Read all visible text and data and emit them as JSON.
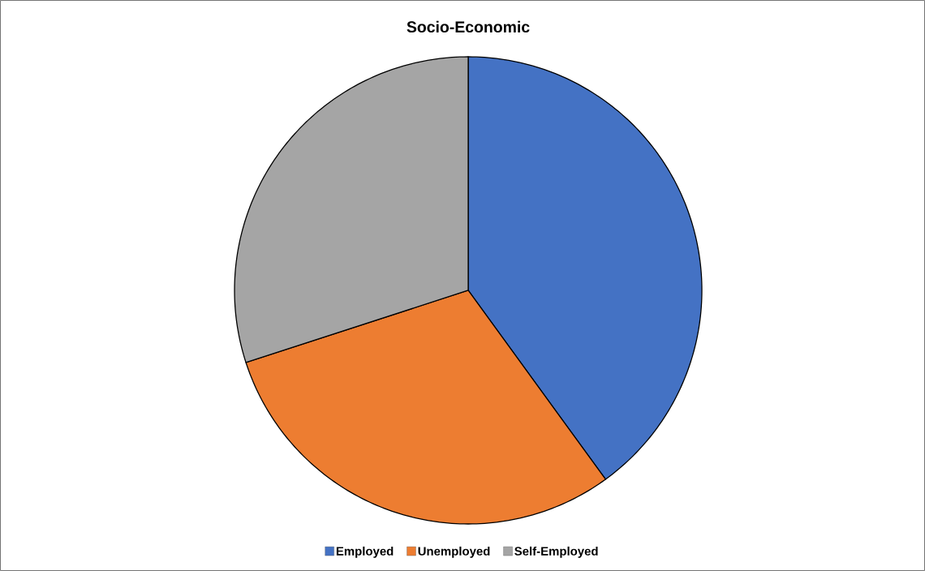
{
  "chart_data": {
    "type": "pie",
    "title": "Socio-Economic",
    "categories": [
      "Employed",
      "Unemployed",
      "Self-Employed"
    ],
    "values": [
      40,
      30,
      30
    ],
    "colors": [
      "#4472c4",
      "#ed7d31",
      "#a5a5a5"
    ],
    "legend": "bottom"
  }
}
